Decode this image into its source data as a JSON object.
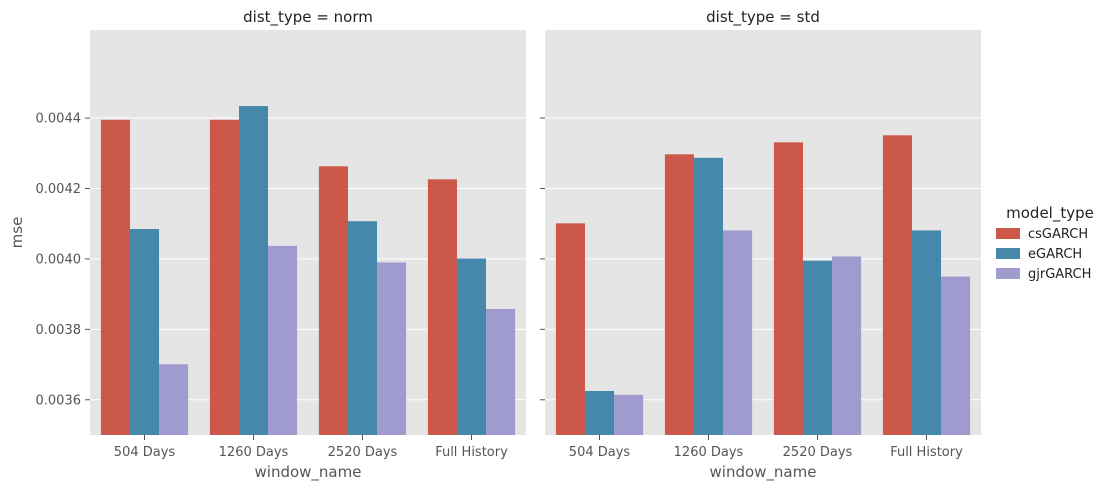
{
  "chart_data": {
    "type": "bar",
    "ylabel": "mse",
    "xlabel": "window_name",
    "ylim": [
      0.0035,
      0.00465
    ],
    "yticks": [
      "0.0036",
      "0.0038",
      "0.0040",
      "0.0042",
      "0.0044"
    ],
    "yticks_values": [
      0.0036,
      0.0038,
      0.004,
      0.0042,
      0.0044
    ],
    "grid": true,
    "categories": [
      "504 Days",
      "1260 Days",
      "2520 Days",
      "Full History"
    ],
    "legend": {
      "title": "model_type",
      "placement": "right",
      "entries": [
        "csGARCH",
        "eGARCH",
        "gjrGARCH"
      ]
    },
    "colors": {
      "csGARCH": "#cc584a",
      "eGARCH": "#4688ac",
      "gjrGARCH": "#a09bcf"
    },
    "panels": [
      {
        "title": "dist_type = norm",
        "series": [
          {
            "name": "csGARCH",
            "values": [
              0.004395,
              0.004395,
              0.004263,
              0.004226
            ]
          },
          {
            "name": "eGARCH",
            "values": [
              0.004085,
              0.004434,
              0.004107,
              0.004001
            ]
          },
          {
            "name": "gjrGARCH",
            "values": [
              0.003701,
              0.004037,
              0.00399,
              0.003858
            ]
          }
        ]
      },
      {
        "title": "dist_type = std",
        "series": [
          {
            "name": "csGARCH",
            "values": [
              0.004101,
              0.004297,
              0.004331,
              0.004351
            ]
          },
          {
            "name": "eGARCH",
            "values": [
              0.003625,
              0.004287,
              0.003995,
              0.004081
            ]
          },
          {
            "name": "gjrGARCH",
            "values": [
              0.003614,
              0.004081,
              0.004007,
              0.00395
            ]
          }
        ]
      }
    ]
  }
}
